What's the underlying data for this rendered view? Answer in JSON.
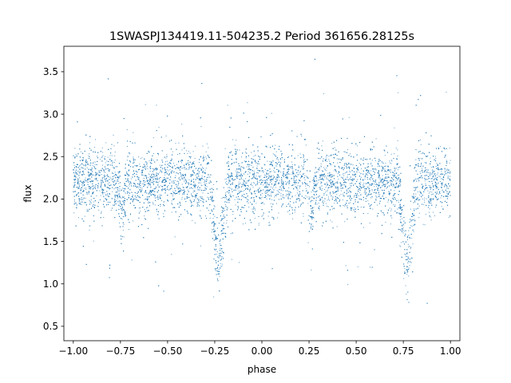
{
  "chart_data": {
    "type": "scatter",
    "title": "1SWASPJ134419.11-504235.2 Period 361656.28125s",
    "xlabel": "phase",
    "ylabel": "flux",
    "xlim": [
      -1.05,
      1.05
    ],
    "ylim": [
      0.33,
      3.8
    ],
    "xticks": [
      -1.0,
      -0.75,
      -0.5,
      -0.25,
      0.0,
      0.25,
      0.5,
      0.75,
      1.0
    ],
    "xtick_labels": [
      "−1.00",
      "−0.75",
      "−0.50",
      "−0.25",
      "0.00",
      "0.25",
      "0.50",
      "0.75",
      "1.00"
    ],
    "yticks": [
      0.5,
      1.0,
      1.5,
      2.0,
      2.5,
      3.0,
      3.5
    ],
    "ytick_labels": [
      "0.5",
      "1.0",
      "1.5",
      "2.0",
      "2.5",
      "3.0",
      "3.5"
    ],
    "grid": false,
    "marker_color": "#1f77b4",
    "light_curve": {
      "baseline_flux": 2.2,
      "scatter_sigma": 0.2,
      "primary_eclipse": {
        "phase": -0.23,
        "min_flux": 1.22,
        "half_width": 0.05
      },
      "primary_eclipse_repeat": {
        "phase": 0.77,
        "min_flux": 1.22,
        "half_width": 0.05
      },
      "secondary_dips": [
        {
          "phase": -0.74,
          "min_flux": 1.8,
          "half_width": 0.02
        },
        {
          "phase": 0.26,
          "min_flux": 1.8,
          "half_width": 0.02
        }
      ],
      "phase_range": [
        -1.0,
        1.0
      ],
      "point_count": 9000
    }
  }
}
